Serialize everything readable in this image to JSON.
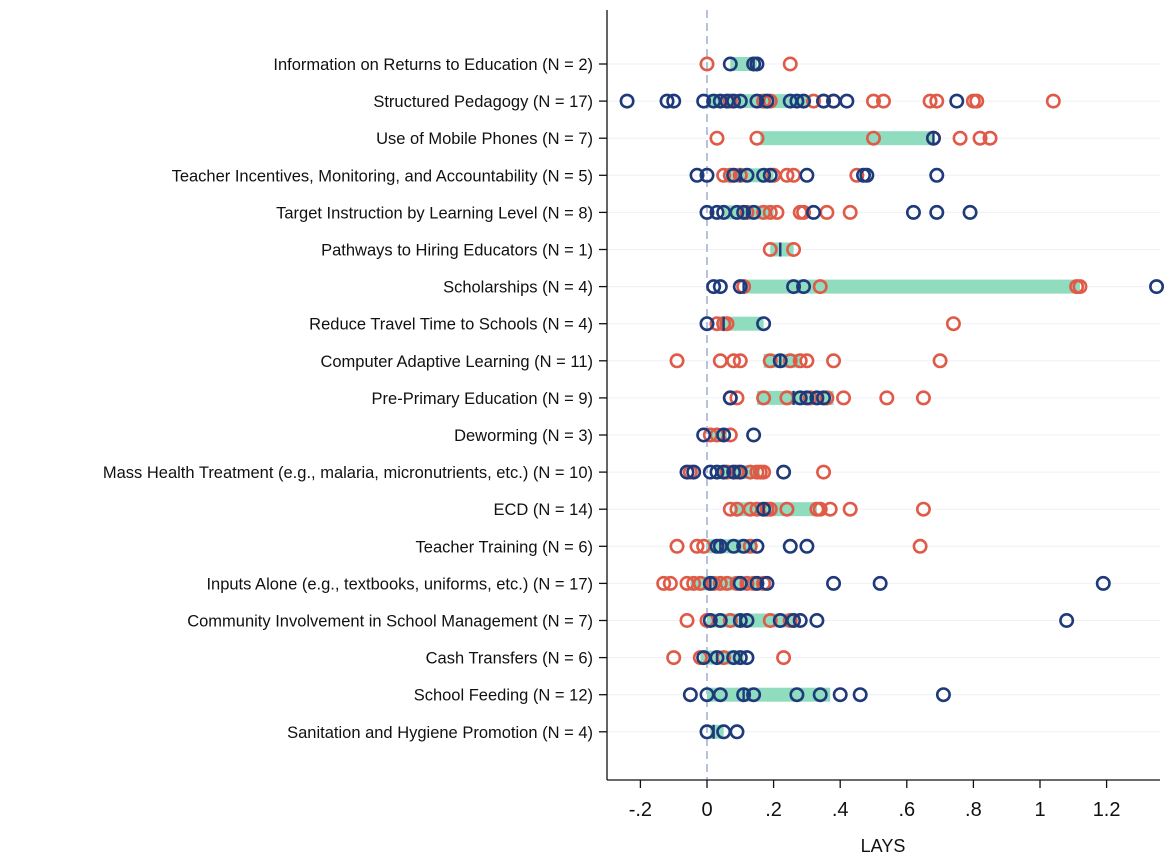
{
  "chart_data": {
    "type": "scatter",
    "xlabel": "LAYS",
    "xticks": [
      -0.2,
      0,
      0.2,
      0.4,
      0.6,
      0.8,
      1,
      1.2
    ],
    "xtick_labels": [
      "-.2",
      "0",
      ".2",
      ".4",
      ".6",
      ".8",
      "1",
      "1.2"
    ],
    "xlim": [
      -0.3,
      1.35
    ],
    "reference_line_x": 0,
    "colors": {
      "blue": "#1f3a7a",
      "red": "#e05a48",
      "band": "#8fdcbf",
      "median": "#1f3a7a",
      "refline": "#b8c2dc",
      "gridline": "#eef0f6"
    },
    "categories": [
      {
        "label": "Information on Returns to Education (N = 2)",
        "iqr": [
          0.07,
          0.15
        ],
        "median": 0.14,
        "blue": [
          0.07,
          0.14,
          0.15
        ],
        "red": [
          0.0,
          0.25
        ]
      },
      {
        "label": "Structured Pedagogy (N = 17)",
        "iqr": [
          0.0,
          0.3
        ],
        "median": 0.16,
        "blue": [
          -0.24,
          -0.12,
          -0.1,
          -0.01,
          0.02,
          0.04,
          0.06,
          0.08,
          0.1,
          0.15,
          0.18,
          0.25,
          0.27,
          0.29,
          0.35,
          0.38,
          0.42,
          0.75
        ],
        "red": [
          0.07,
          0.17,
          0.19,
          0.32,
          0.35,
          0.38,
          0.5,
          0.53,
          0.67,
          0.69,
          0.8,
          0.81,
          1.04
        ]
      },
      {
        "label": "Use of Mobile Phones (N = 7)",
        "iqr": [
          0.16,
          0.68
        ],
        "median": 0.68,
        "blue": [
          0.68
        ],
        "red": [
          0.03,
          0.15,
          0.5,
          0.68,
          0.76,
          0.82,
          0.85
        ]
      },
      {
        "label": "Teacher Incentives, Monitoring, and Accountability (N = 5)",
        "iqr": [
          0.05,
          0.2
        ],
        "median": 0.1,
        "blue": [
          -0.03,
          0.0,
          0.08,
          0.12,
          0.17,
          0.19,
          0.3,
          0.47,
          0.48,
          0.69
        ],
        "red": [
          0.05,
          0.07,
          0.1,
          0.2,
          0.24,
          0.26,
          0.45
        ]
      },
      {
        "label": "Target Instruction by Learning Level (N = 8)",
        "iqr": [
          0.05,
          0.2
        ],
        "median": 0.12,
        "blue": [
          -0.0,
          0.03,
          0.05,
          0.09,
          0.11,
          0.14,
          0.32,
          0.62,
          0.69,
          0.79
        ],
        "red": [
          0.12,
          0.17,
          0.19,
          0.21,
          0.28,
          0.29,
          0.36,
          0.43
        ]
      },
      {
        "label": "Pathways to Hiring Educators (N = 1)",
        "iqr": [
          0.19,
          0.26
        ],
        "median": 0.22,
        "blue": [],
        "red": [
          0.19,
          0.26
        ]
      },
      {
        "label": "Scholarships (N = 4)",
        "iqr": [
          0.11,
          1.12
        ],
        "median": 0.11,
        "blue": [
          0.02,
          0.04,
          0.1,
          0.26,
          0.29,
          1.35
        ],
        "red": [
          0.11,
          0.34,
          1.11,
          1.12
        ]
      },
      {
        "label": "Reduce Travel Time to Schools (N = 4)",
        "iqr": [
          0.03,
          0.17
        ],
        "median": 0.05,
        "blue": [
          0.0,
          0.17
        ],
        "red": [
          0.03,
          0.05,
          0.06,
          0.74
        ]
      },
      {
        "label": "Computer Adaptive Learning (N = 11)",
        "iqr": [
          0.17,
          0.28
        ],
        "median": 0.22,
        "blue": [
          0.22
        ],
        "red": [
          -0.09,
          0.04,
          0.08,
          0.1,
          0.19,
          0.25,
          0.28,
          0.3,
          0.38,
          0.7
        ]
      },
      {
        "label": "Pre-Primary Education (N = 9)",
        "iqr": [
          0.15,
          0.38
        ],
        "median": 0.26,
        "blue": [
          0.07,
          0.28,
          0.3,
          0.33,
          0.35
        ],
        "red": [
          0.07,
          0.09,
          0.17,
          0.24,
          0.31,
          0.36,
          0.41,
          0.54,
          0.65
        ]
      },
      {
        "label": "Deworming (N = 3)",
        "iqr": [
          0.01,
          0.06
        ],
        "median": 0.05,
        "blue": [
          -0.01,
          0.05,
          0.14
        ],
        "red": [
          0.01,
          0.03,
          0.07
        ]
      },
      {
        "label": "Mass Health Treatment (e.g., malaria, micronutrients, etc.) (N = 10)",
        "iqr": [
          0.03,
          0.16
        ],
        "median": 0.08,
        "blue": [
          -0.06,
          -0.04,
          0.01,
          0.03,
          0.05,
          0.08,
          0.1,
          0.23
        ],
        "red": [
          -0.05,
          0.06,
          0.09,
          0.13,
          0.15,
          0.16,
          0.17,
          0.35
        ]
      },
      {
        "label": "ECD (N = 14)",
        "iqr": [
          0.08,
          0.33
        ],
        "median": 0.17,
        "blue": [
          0.17
        ],
        "red": [
          0.07,
          0.09,
          0.13,
          0.15,
          0.18,
          0.19,
          0.24,
          0.33,
          0.34,
          0.37,
          0.43,
          0.65
        ]
      },
      {
        "label": "Teacher Training (N = 6)",
        "iqr": [
          0.0,
          0.15
        ],
        "median": 0.04,
        "blue": [
          0.03,
          0.04,
          0.08,
          0.11,
          0.15,
          0.25,
          0.3
        ],
        "red": [
          -0.09,
          -0.03,
          -0.01,
          0.13,
          0.64
        ]
      },
      {
        "label": "Inputs Alone (e.g., textbooks, uniforms, etc.) (N = 17)",
        "iqr": [
          -0.05,
          0.17
        ],
        "median": 0.01,
        "blue": [
          0.01,
          0.1,
          0.15,
          0.18,
          0.38,
          0.52,
          1.19
        ],
        "red": [
          -0.13,
          -0.11,
          -0.06,
          -0.04,
          -0.02,
          0.02,
          0.04,
          0.06,
          0.09,
          0.12,
          0.14,
          0.17
        ]
      },
      {
        "label": "Community Involvement in School Management (N = 7)",
        "iqr": [
          0.0,
          0.26
        ],
        "median": 0.1,
        "blue": [
          0.01,
          0.04,
          0.1,
          0.12,
          0.22,
          0.26,
          0.28,
          0.33,
          1.08
        ],
        "red": [
          -0.06,
          0.0,
          0.07,
          0.19,
          0.25
        ]
      },
      {
        "label": "Cash Transfers (N = 6)",
        "iqr": [
          -0.02,
          0.11
        ],
        "median": 0.03,
        "blue": [
          -0.01,
          0.03,
          0.08,
          0.1,
          0.12
        ],
        "red": [
          -0.1,
          -0.02,
          0.05,
          0.23
        ]
      },
      {
        "label": "School Feeding (N = 12)",
        "iqr": [
          0.0,
          0.37
        ],
        "median": 0.11,
        "blue": [
          -0.05,
          0.0,
          0.04,
          0.11,
          0.14,
          0.27,
          0.34,
          0.4,
          0.46,
          0.71
        ],
        "red": []
      },
      {
        "label": "Sanitation and Hygiene Promotion (N = 4)",
        "iqr": [
          0.01,
          0.05
        ],
        "median": 0.02,
        "blue": [
          0.0,
          0.05,
          0.09
        ],
        "red": []
      }
    ]
  }
}
